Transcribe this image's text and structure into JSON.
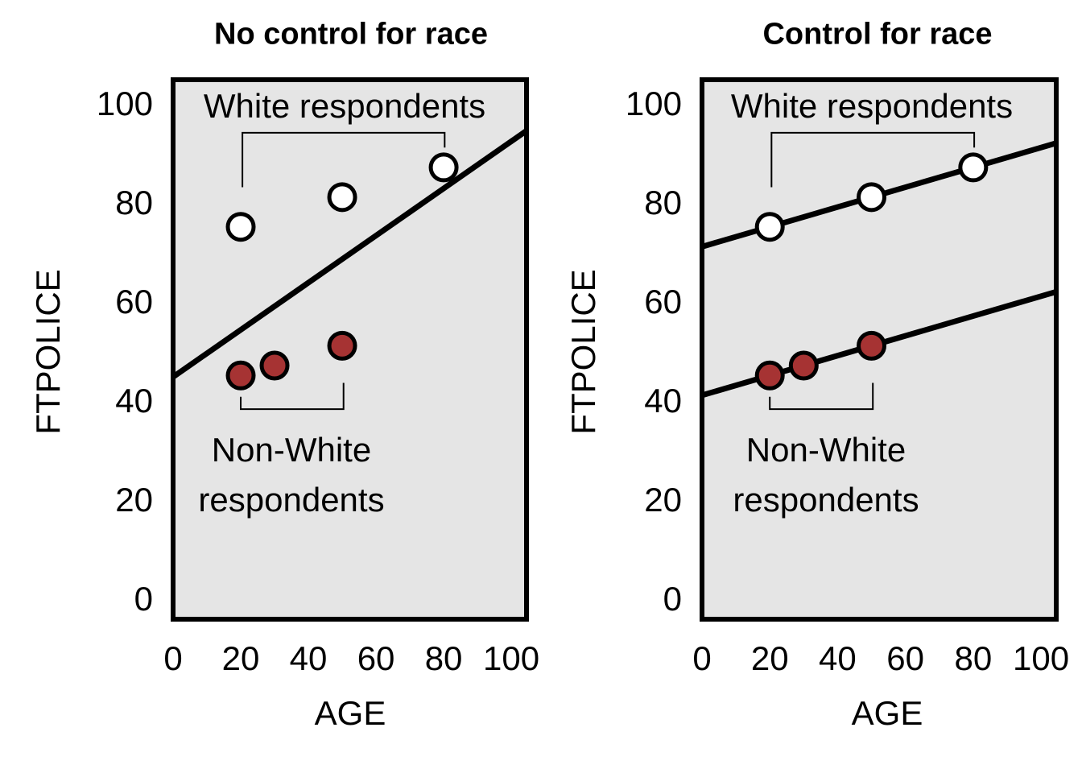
{
  "figure_bg": "#ffffff",
  "chart_data": [
    {
      "type": "scatter",
      "title": "No control for race",
      "xlabel": "AGE",
      "ylabel": "FTPOLICE",
      "xlim": [
        0,
        104.5
      ],
      "ylim": [
        -4.2,
        104.7
      ],
      "xticks": [
        0,
        20,
        40,
        60,
        80,
        100
      ],
      "yticks": [
        0,
        20,
        40,
        60,
        80,
        100
      ],
      "grid": false,
      "plot_bg": "#e5e5e5",
      "frame_color": "#000000",
      "series": [
        {
          "name": "White respondents",
          "marker": "circle",
          "marker_fill": "#ffffff",
          "marker_stroke": "#000000",
          "points": [
            [
              20,
              75
            ],
            [
              50,
              81
            ],
            [
              80,
              87
            ]
          ]
        },
        {
          "name": "Non-White respondents",
          "marker": "circle",
          "marker_fill": "#a63333",
          "marker_stroke": "#000000",
          "points": [
            [
              20,
              45
            ],
            [
              30,
              47
            ],
            [
              50,
              51
            ]
          ]
        }
      ],
      "lines": [
        {
          "name": "pooled-regression-line",
          "color": "#000000",
          "start": [
            0,
            44.7
          ],
          "end": [
            104.5,
            94.4
          ]
        }
      ],
      "brackets": [
        {
          "name": "white-respondents-bracket",
          "x1": 20.5,
          "x2": 80.3,
          "y": 94.0,
          "tick1_y": 83.0,
          "tick2_y": 91.0
        },
        {
          "name": "nonwhite-respondents-bracket",
          "x1": 20.0,
          "x2": 50.4,
          "y": 38.2,
          "tick1_y": 40.7,
          "tick2_y": 43.5
        }
      ],
      "labels": {
        "white": "White respondents",
        "nonwhite_line1": "Non-White",
        "nonwhite_line2": "respondents"
      }
    },
    {
      "type": "scatter",
      "title": "Control for race",
      "xlabel": "AGE",
      "ylabel": "FTPOLICE",
      "xlim": [
        0,
        104.5
      ],
      "ylim": [
        -4.2,
        104.7
      ],
      "xticks": [
        0,
        20,
        40,
        60,
        80,
        100
      ],
      "yticks": [
        0,
        20,
        40,
        60,
        80,
        100
      ],
      "grid": false,
      "plot_bg": "#e5e5e5",
      "frame_color": "#000000",
      "series": [
        {
          "name": "White respondents",
          "marker": "circle",
          "marker_fill": "#ffffff",
          "marker_stroke": "#000000",
          "points": [
            [
              20,
              75
            ],
            [
              50,
              81
            ],
            [
              80,
              87
            ]
          ]
        },
        {
          "name": "Non-White respondents",
          "marker": "circle",
          "marker_fill": "#a63333",
          "marker_stroke": "#000000",
          "points": [
            [
              20,
              45
            ],
            [
              30,
              47
            ],
            [
              50,
              51
            ]
          ]
        }
      ],
      "lines": [
        {
          "name": "white-regression-line",
          "color": "#000000",
          "start": [
            0,
            71.0
          ],
          "end": [
            104.5,
            91.9
          ]
        },
        {
          "name": "nonwhite-regression-line",
          "color": "#000000",
          "start": [
            0,
            41.0
          ],
          "end": [
            104.5,
            61.9
          ]
        }
      ],
      "brackets": [
        {
          "name": "white-respondents-bracket",
          "x1": 20.5,
          "x2": 80.3,
          "y": 94.0,
          "tick1_y": 83.0,
          "tick2_y": 91.0
        },
        {
          "name": "nonwhite-respondents-bracket",
          "x1": 20.0,
          "x2": 50.4,
          "y": 38.2,
          "tick1_y": 40.7,
          "tick2_y": 43.5
        }
      ],
      "labels": {
        "white": "White respondents",
        "nonwhite_line1": "Non-White",
        "nonwhite_line2": "respondents"
      }
    }
  ]
}
